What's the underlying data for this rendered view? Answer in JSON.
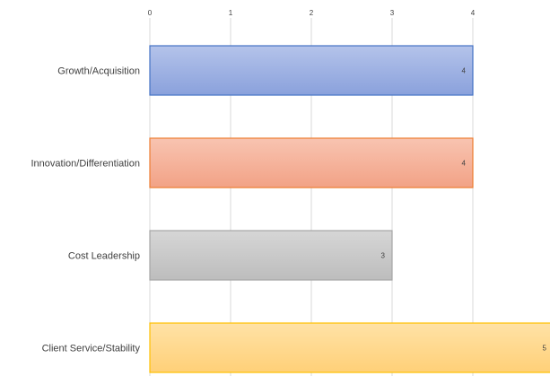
{
  "chart_data": {
    "type": "bar",
    "orientation": "horizontal",
    "categories": [
      "Growth/Acquisition",
      "Innovation/Differentiation",
      "Cost Leadership",
      "Client Service/Stability"
    ],
    "values": [
      4,
      4,
      3,
      5
    ],
    "data_labels": [
      "4",
      "4",
      "3",
      "5"
    ],
    "xlim": [
      0,
      5
    ],
    "x_ticks": [
      "0",
      "1",
      "2",
      "3",
      "4"
    ],
    "tick_positions": [
      0,
      1,
      2,
      3,
      4
    ],
    "grid": true,
    "axis_position": "top",
    "colors": {
      "fill": [
        "#9aaee2",
        "#f5b29c",
        "#c8c8c8",
        "#ffd88a"
      ],
      "stroke": [
        "#4472c4",
        "#ed7d31",
        "#a5a5a5",
        "#ffc000"
      ],
      "grid": "#d9d9d9"
    }
  }
}
